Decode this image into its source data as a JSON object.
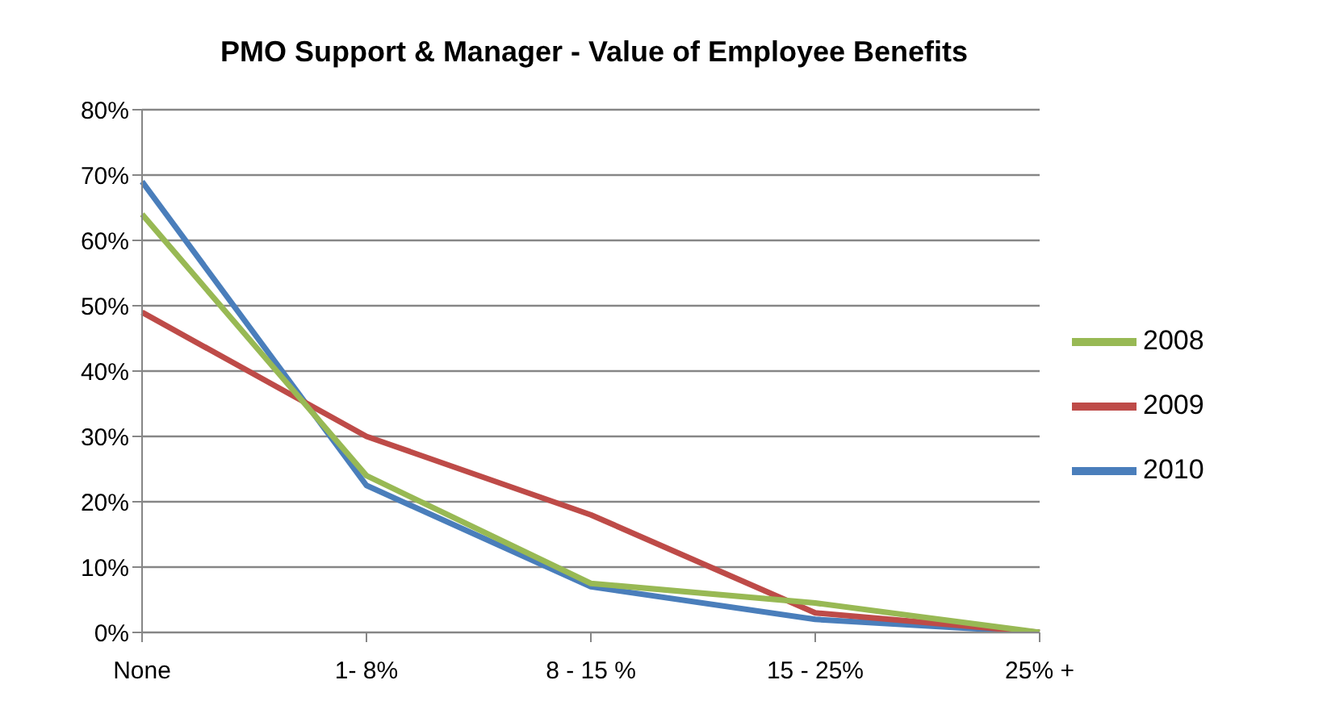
{
  "chart_data": {
    "type": "line",
    "title": "PMO Support & Manager - Value of Employee Benefits",
    "categories": [
      "None",
      "1- 8%",
      "8 - 15 %",
      "15 - 25%",
      "25% +"
    ],
    "series": [
      {
        "name": "2010",
        "color": "#4a7ebb",
        "values": [
          69,
          22.5,
          7,
          2,
          0
        ]
      },
      {
        "name": "2009",
        "color": "#be4b48",
        "values": [
          49,
          30,
          18,
          3,
          0
        ]
      },
      {
        "name": "2008",
        "color": "#98b954",
        "values": [
          64,
          24,
          7.5,
          4.5,
          0
        ]
      }
    ],
    "ylim": [
      0,
      80
    ],
    "yticks": [
      {
        "value": 0,
        "label": "0%"
      },
      {
        "value": 10,
        "label": "10%"
      },
      {
        "value": 20,
        "label": "20%"
      },
      {
        "value": 30,
        "label": "30%"
      },
      {
        "value": 40,
        "label": "40%"
      },
      {
        "value": 50,
        "label": "50%"
      },
      {
        "value": 60,
        "label": "60%"
      },
      {
        "value": 70,
        "label": "70%"
      },
      {
        "value": 80,
        "label": "80%"
      }
    ],
    "grid": "y",
    "legend": "right",
    "marker": "none",
    "line_style": "solid"
  }
}
